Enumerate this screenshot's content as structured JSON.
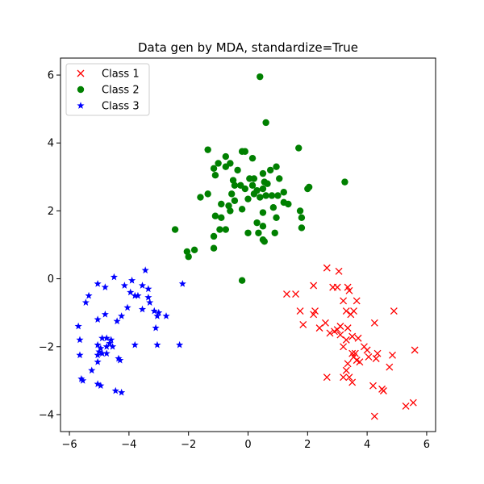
{
  "chart_data": {
    "type": "scatter",
    "title": "Data gen by MDA, standardize=True",
    "xlabel": "",
    "ylabel": "",
    "xlim": [
      -6.3,
      6.3
    ],
    "ylim": [
      -4.5,
      6.5
    ],
    "xticks": [
      -6,
      -4,
      -2,
      0,
      2,
      4,
      6
    ],
    "yticks": [
      -4,
      -2,
      0,
      2,
      4,
      6
    ],
    "xtick_labels": [
      "−6",
      "−4",
      "−2",
      "0",
      "2",
      "4",
      "6"
    ],
    "ytick_labels": [
      "−4",
      "−2",
      "0",
      "2",
      "4",
      "6"
    ],
    "grid": false,
    "legend_position": "upper-left",
    "series": [
      {
        "name": "Class 1",
        "marker": "x",
        "color": "#ff0000",
        "points": [
          [
            2.65,
            0.32
          ],
          [
            3.05,
            0.22
          ],
          [
            2.2,
            -0.2
          ],
          [
            2.85,
            -0.25
          ],
          [
            3.0,
            -0.25
          ],
          [
            3.35,
            -0.25
          ],
          [
            3.4,
            -0.35
          ],
          [
            1.3,
            -0.45
          ],
          [
            1.6,
            -0.45
          ],
          [
            3.2,
            -0.65
          ],
          [
            3.65,
            -0.65
          ],
          [
            1.75,
            -0.95
          ],
          [
            2.25,
            -0.95
          ],
          [
            2.2,
            -1.05
          ],
          [
            3.3,
            -0.95
          ],
          [
            3.55,
            -0.95
          ],
          [
            4.9,
            -0.95
          ],
          [
            3.45,
            -1.05
          ],
          [
            4.25,
            -1.3
          ],
          [
            2.6,
            -1.3
          ],
          [
            1.85,
            -1.35
          ],
          [
            3.1,
            -1.4
          ],
          [
            2.4,
            -1.45
          ],
          [
            3.35,
            -1.45
          ],
          [
            3.0,
            -1.5
          ],
          [
            2.9,
            -1.55
          ],
          [
            2.75,
            -1.6
          ],
          [
            3.1,
            -1.65
          ],
          [
            3.5,
            -1.7
          ],
          [
            3.3,
            -1.8
          ],
          [
            3.7,
            -1.75
          ],
          [
            3.2,
            -2.0
          ],
          [
            3.9,
            -2.0
          ],
          [
            4.0,
            -2.1
          ],
          [
            3.5,
            -2.2
          ],
          [
            3.6,
            -2.2
          ],
          [
            4.35,
            -2.2
          ],
          [
            4.85,
            -2.25
          ],
          [
            4.05,
            -2.3
          ],
          [
            3.55,
            -2.3
          ],
          [
            4.3,
            -2.35
          ],
          [
            3.65,
            -2.4
          ],
          [
            3.35,
            -2.5
          ],
          [
            3.75,
            -2.45
          ],
          [
            4.75,
            -2.6
          ],
          [
            3.3,
            -2.7
          ],
          [
            2.65,
            -2.9
          ],
          [
            3.2,
            -2.9
          ],
          [
            3.4,
            -2.9
          ],
          [
            3.5,
            -3.05
          ],
          [
            4.2,
            -3.15
          ],
          [
            4.5,
            -3.25
          ],
          [
            4.55,
            -3.3
          ],
          [
            5.55,
            -3.65
          ],
          [
            5.3,
            -3.75
          ],
          [
            4.25,
            -4.05
          ],
          [
            5.6,
            -2.1
          ]
        ]
      },
      {
        "name": "Class 2",
        "marker": "o",
        "color": "#008000",
        "points": [
          [
            0.4,
            5.95
          ],
          [
            0.6,
            4.6
          ],
          [
            1.7,
            3.85
          ],
          [
            -1.35,
            3.8
          ],
          [
            -0.2,
            3.75
          ],
          [
            -0.1,
            3.75
          ],
          [
            -0.75,
            3.6
          ],
          [
            0.15,
            3.55
          ],
          [
            -0.6,
            3.4
          ],
          [
            -1.0,
            3.4
          ],
          [
            -0.75,
            3.3
          ],
          [
            0.95,
            3.3
          ],
          [
            -1.15,
            3.25
          ],
          [
            0.75,
            3.2
          ],
          [
            -0.35,
            3.2
          ],
          [
            0.5,
            3.1
          ],
          [
            -1.1,
            3.05
          ],
          [
            1.05,
            2.95
          ],
          [
            0.05,
            2.95
          ],
          [
            0.2,
            2.95
          ],
          [
            -0.5,
            2.9
          ],
          [
            0.55,
            2.85
          ],
          [
            0.65,
            2.8
          ],
          [
            -0.45,
            2.75
          ],
          [
            -0.25,
            2.75
          ],
          [
            0.15,
            2.75
          ],
          [
            -0.1,
            2.65
          ],
          [
            0.3,
            2.6
          ],
          [
            0.5,
            2.65
          ],
          [
            2.05,
            2.7
          ],
          [
            2.0,
            2.65
          ],
          [
            3.25,
            2.85
          ],
          [
            1.2,
            2.55
          ],
          [
            0.2,
            2.5
          ],
          [
            -0.55,
            2.5
          ],
          [
            -1.35,
            2.5
          ],
          [
            -1.6,
            2.4
          ],
          [
            0.6,
            2.45
          ],
          [
            0.8,
            2.45
          ],
          [
            1.0,
            2.45
          ],
          [
            0.4,
            2.4
          ],
          [
            0.0,
            2.35
          ],
          [
            -0.45,
            2.3
          ],
          [
            1.2,
            2.25
          ],
          [
            -0.9,
            2.2
          ],
          [
            -0.65,
            2.15
          ],
          [
            1.35,
            2.2
          ],
          [
            0.85,
            2.1
          ],
          [
            -0.2,
            2.05
          ],
          [
            -0.6,
            2.0
          ],
          [
            1.75,
            2.0
          ],
          [
            0.5,
            1.95
          ],
          [
            -1.1,
            1.85
          ],
          [
            -0.9,
            1.8
          ],
          [
            1.8,
            1.8
          ],
          [
            0.95,
            1.8
          ],
          [
            0.3,
            1.65
          ],
          [
            0.5,
            1.55
          ],
          [
            -2.45,
            1.45
          ],
          [
            -0.75,
            1.45
          ],
          [
            -0.95,
            1.45
          ],
          [
            1.8,
            1.5
          ],
          [
            0.0,
            1.35
          ],
          [
            0.35,
            1.35
          ],
          [
            0.9,
            1.35
          ],
          [
            -1.15,
            1.25
          ],
          [
            0.5,
            1.15
          ],
          [
            0.55,
            1.1
          ],
          [
            -1.15,
            0.9
          ],
          [
            -1.8,
            0.85
          ],
          [
            -2.05,
            0.8
          ],
          [
            -2.0,
            0.65
          ],
          [
            -0.2,
            -0.05
          ]
        ]
      },
      {
        "name": "Class 3",
        "marker": "*",
        "color": "#0000ff",
        "points": [
          [
            -3.45,
            0.25
          ],
          [
            -4.5,
            0.05
          ],
          [
            -3.9,
            -0.05
          ],
          [
            -5.05,
            -0.15
          ],
          [
            -4.15,
            -0.2
          ],
          [
            -2.2,
            -0.15
          ],
          [
            -3.55,
            -0.2
          ],
          [
            -4.8,
            -0.25
          ],
          [
            -3.35,
            -0.3
          ],
          [
            -3.95,
            -0.4
          ],
          [
            -5.35,
            -0.5
          ],
          [
            -3.8,
            -0.5
          ],
          [
            -3.7,
            -0.5
          ],
          [
            -3.35,
            -0.55
          ],
          [
            -5.45,
            -0.7
          ],
          [
            -3.3,
            -0.7
          ],
          [
            -4.05,
            -0.85
          ],
          [
            -3.55,
            -0.9
          ],
          [
            -3.15,
            -0.95
          ],
          [
            -3.0,
            -1.0
          ],
          [
            -4.8,
            -1.05
          ],
          [
            -4.25,
            -1.1
          ],
          [
            -2.75,
            -1.1
          ],
          [
            -3.05,
            -1.1
          ],
          [
            -5.05,
            -1.2
          ],
          [
            -4.4,
            -1.25
          ],
          [
            -3.1,
            -1.45
          ],
          [
            -5.7,
            -1.4
          ],
          [
            -4.75,
            -1.75
          ],
          [
            -4.9,
            -1.75
          ],
          [
            -4.6,
            -1.8
          ],
          [
            -5.65,
            -1.8
          ],
          [
            -4.65,
            -1.9
          ],
          [
            -5.05,
            -1.95
          ],
          [
            -4.75,
            -2.0
          ],
          [
            -3.8,
            -1.95
          ],
          [
            -4.55,
            -2.0
          ],
          [
            -2.3,
            -1.95
          ],
          [
            -3.05,
            -1.95
          ],
          [
            -4.95,
            -2.05
          ],
          [
            -5.0,
            -2.15
          ],
          [
            -4.9,
            -2.2
          ],
          [
            -4.75,
            -2.2
          ],
          [
            -5.05,
            -2.25
          ],
          [
            -5.65,
            -2.25
          ],
          [
            -4.35,
            -2.35
          ],
          [
            -4.3,
            -2.4
          ],
          [
            -5.05,
            -2.45
          ],
          [
            -5.25,
            -2.7
          ],
          [
            -5.6,
            -2.95
          ],
          [
            -5.55,
            -3.0
          ],
          [
            -5.05,
            -3.1
          ],
          [
            -4.95,
            -3.15
          ],
          [
            -4.45,
            -3.3
          ],
          [
            -4.25,
            -3.35
          ]
        ]
      }
    ]
  }
}
